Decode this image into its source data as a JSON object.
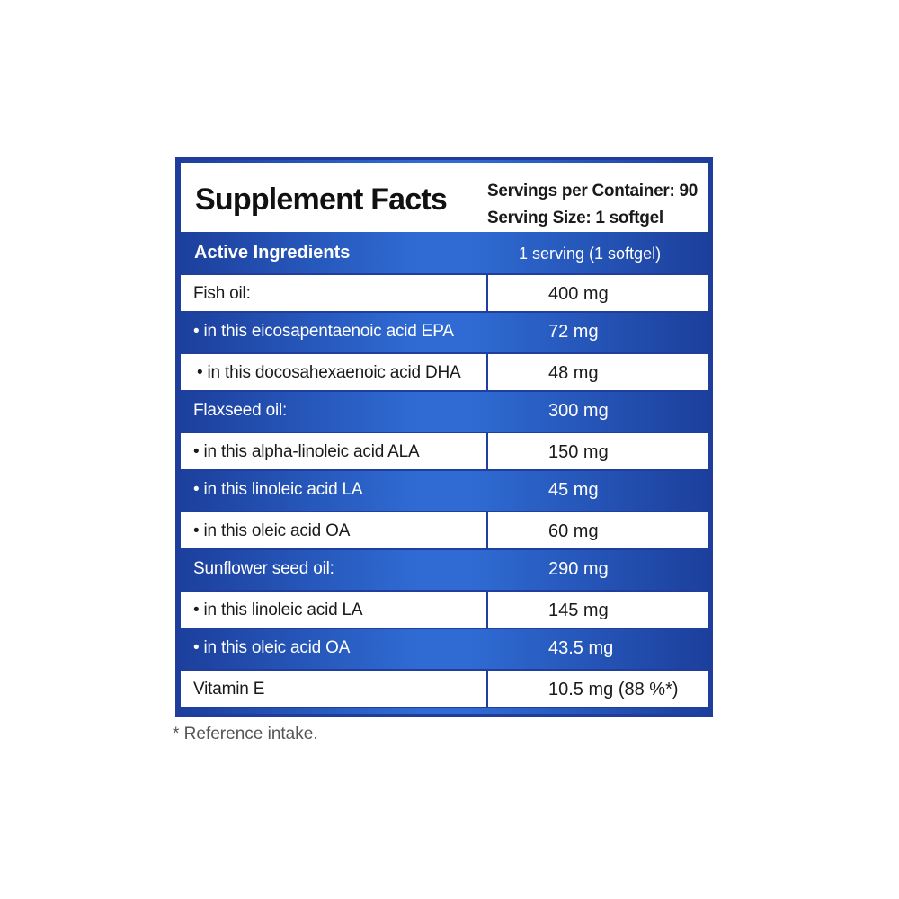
{
  "header": {
    "title": "Supplement Facts",
    "servings_per_container": "Servings per Container: 90",
    "serving_size": "Serving Size: 1 softgel"
  },
  "columns": {
    "ingredients": "Active Ingredients",
    "amount": "1 serving (1 softgel)"
  },
  "rows": [
    {
      "name": "Fish oil:",
      "amount": "400 mg"
    },
    {
      "name": "• in this eicosapentaenoic acid EPA",
      "amount": "72 mg"
    },
    {
      "name": "• in this docosahexaenoic acid DHA",
      "amount": "48  mg"
    },
    {
      "name": "Flaxseed  oil:",
      "amount": "300  mg"
    },
    {
      "name": "• in this alpha-linoleic acid ALA",
      "amount": "150  mg"
    },
    {
      "name": "• in this linoleic acid LA",
      "amount": "45  mg"
    },
    {
      "name": "• in this oleic acid OA",
      "amount": "60  mg"
    },
    {
      "name": "Sunflower seed oil:",
      "amount": "290  mg"
    },
    {
      "name": "• in this linoleic acid LA",
      "amount": "145  mg"
    },
    {
      "name": "• in this oleic acid OA",
      "amount": "43.5  mg"
    },
    {
      "name": "Vitamin E",
      "amount": "10.5 mg (88 %*)"
    }
  ],
  "footnote": "* Reference intake.",
  "colors": {
    "border_blue": "#213d9c",
    "band_dark": "#1c3f9c",
    "band_light": "#2f6bd3"
  }
}
